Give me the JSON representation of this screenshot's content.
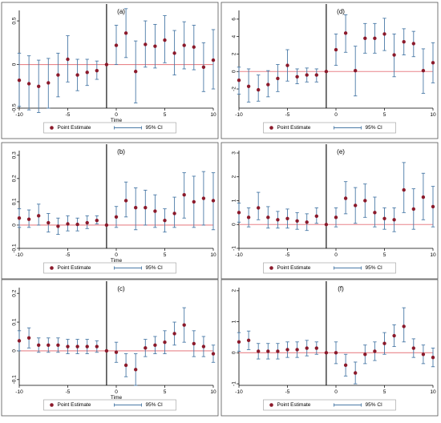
{
  "chart_data": [
    {
      "type": "scatter",
      "panel": "(a)",
      "title": "(a)",
      "xlabel": "Time",
      "ylabel": "",
      "xlim": [
        -10,
        10
      ],
      "ylim": [
        -0.5,
        0.62
      ],
      "yticks": [
        -0.5,
        0,
        0.5
      ],
      "ytick_labels": [
        "-0.5",
        "0",
        "0.5"
      ],
      "x": [
        -10,
        -9,
        -8,
        -7,
        -6,
        -5,
        -4,
        -3,
        -2,
        -1,
        0,
        1,
        2,
        3,
        4,
        5,
        6,
        7,
        8,
        9,
        10
      ],
      "point_estimate": [
        -0.18,
        -0.22,
        -0.25,
        -0.21,
        -0.12,
        0.06,
        -0.12,
        -0.09,
        -0.07,
        0,
        0.22,
        0.36,
        -0.08,
        0.23,
        0.21,
        0.28,
        0.13,
        0.22,
        0.2,
        -0.03,
        0.05
      ],
      "ci_lower": [
        -0.48,
        -0.52,
        -0.55,
        -0.5,
        -0.37,
        -0.2,
        -0.3,
        -0.24,
        -0.17,
        0,
        0.0,
        0.08,
        -0.44,
        -0.03,
        -0.04,
        0.02,
        -0.12,
        -0.05,
        -0.06,
        -0.31,
        -0.28
      ],
      "ci_upper": [
        0.13,
        0.1,
        0.05,
        0.07,
        0.13,
        0.33,
        0.06,
        0.06,
        0.04,
        0,
        0.45,
        0.64,
        0.27,
        0.5,
        0.46,
        0.56,
        0.39,
        0.49,
        0.45,
        0.25,
        0.4
      ],
      "legend": [
        "Point Estimate",
        "95% CI"
      ],
      "legend_placement": "bottom"
    },
    {
      "type": "scatter",
      "panel": "(d)",
      "title": "(d)",
      "xlabel": "",
      "ylabel": "",
      "xlim": [
        -10,
        10
      ],
      "ylim": [
        -4.2,
        7.0
      ],
      "yticks": [
        -2,
        0,
        2,
        4,
        6
      ],
      "ytick_labels": [
        "-2",
        "0",
        "2",
        "4",
        "6"
      ],
      "x": [
        -10,
        -9,
        -8,
        -7,
        -6,
        -5,
        -4,
        -3,
        -2,
        -1,
        0,
        1,
        2,
        3,
        4,
        5,
        6,
        7,
        8,
        9,
        10
      ],
      "point_estimate": [
        -1.0,
        -1.7,
        -2.1,
        -1.5,
        -0.8,
        0.7,
        -0.6,
        -0.4,
        -0.4,
        0,
        2.5,
        4.4,
        0.1,
        3.8,
        3.8,
        4.3,
        1.9,
        3.4,
        3.2,
        0.1,
        1.0
      ],
      "ci_lower": [
        -2.6,
        -3.5,
        -3.4,
        -2.9,
        -2.3,
        -1.1,
        -1.4,
        -1.2,
        -1.2,
        0,
        0.7,
        2.2,
        -2.8,
        2.1,
        2.1,
        2.4,
        -0.6,
        1.9,
        1.7,
        -2.5,
        -1.3
      ],
      "ci_upper": [
        0.5,
        0.3,
        -0.4,
        0.1,
        0.8,
        2.5,
        0.3,
        0.4,
        0.3,
        0,
        4.3,
        6.5,
        2.9,
        5.5,
        5.5,
        6.1,
        4.3,
        4.9,
        4.6,
        2.6,
        3.3
      ],
      "legend": [
        "Point Estimate",
        "95% CI"
      ],
      "legend_placement": "bottom"
    },
    {
      "type": "scatter",
      "panel": "(b)",
      "title": "(b)",
      "xlabel": "Time",
      "ylabel": "",
      "xlim": [
        -10,
        10
      ],
      "ylim": [
        -0.1,
        0.32
      ],
      "yticks": [
        -0.1,
        0,
        0.1,
        0.2,
        0.3
      ],
      "ytick_labels": [
        "-0.1",
        "0",
        "0.1",
        "0.2",
        "0.3"
      ],
      "x": [
        -10,
        -9,
        -8,
        -7,
        -6,
        -5,
        -4,
        -3,
        -2,
        -1,
        0,
        1,
        2,
        3,
        4,
        5,
        6,
        7,
        8,
        9,
        10
      ],
      "point_estimate": [
        0.03,
        0.025,
        0.04,
        0.01,
        -0.005,
        0.005,
        0.003,
        0.01,
        0.02,
        0,
        0.035,
        0.105,
        0.075,
        0.075,
        0.06,
        0.02,
        0.05,
        0.13,
        0.1,
        0.115,
        0.105
      ],
      "ci_lower": [
        -0.01,
        -0.01,
        0.0,
        -0.03,
        -0.04,
        -0.025,
        -0.025,
        -0.015,
        0.005,
        0,
        -0.01,
        0.035,
        -0.02,
        0.0,
        -0.01,
        -0.03,
        -0.01,
        0.03,
        -0.01,
        0.0,
        -0.02
      ],
      "ci_upper": [
        0.07,
        0.065,
        0.09,
        0.05,
        0.03,
        0.04,
        0.03,
        0.04,
        0.04,
        0,
        0.08,
        0.185,
        0.16,
        0.15,
        0.13,
        0.07,
        0.12,
        0.225,
        0.21,
        0.23,
        0.225
      ],
      "legend": [
        "Point Estimate",
        "95% CI"
      ],
      "legend_placement": "bottom"
    },
    {
      "type": "scatter",
      "panel": "(e)",
      "title": "(e)",
      "xlabel": "",
      "ylabel": "",
      "xlim": [
        -10,
        10
      ],
      "ylim": [
        -1.0,
        3.1
      ],
      "yticks": [
        -1,
        0,
        1,
        2,
        3
      ],
      "ytick_labels": [
        "-1",
        "0",
        "1",
        "2",
        "3"
      ],
      "x": [
        -10,
        -9,
        -8,
        -7,
        -6,
        -5,
        -4,
        -3,
        -2,
        -1,
        0,
        1,
        2,
        3,
        4,
        5,
        6,
        7,
        8,
        9,
        10
      ],
      "point_estimate": [
        0.5,
        0.3,
        0.7,
        0.3,
        0.2,
        0.25,
        0.15,
        0.1,
        0.35,
        0,
        0.3,
        1.1,
        0.8,
        1.0,
        0.5,
        0.25,
        0.2,
        1.45,
        0.65,
        1.15,
        0.75
      ],
      "ci_lower": [
        0.1,
        -0.1,
        0.2,
        -0.15,
        -0.15,
        -0.15,
        -0.2,
        -0.25,
        0.05,
        0,
        -0.1,
        0.45,
        0.05,
        0.3,
        -0.1,
        -0.2,
        -0.3,
        0.5,
        -0.2,
        0.2,
        -0.1
      ],
      "ci_upper": [
        0.9,
        0.7,
        1.35,
        0.75,
        0.55,
        0.65,
        0.5,
        0.45,
        0.7,
        0,
        0.7,
        1.8,
        1.55,
        1.7,
        1.15,
        0.7,
        0.7,
        2.6,
        1.5,
        2.15,
        1.6
      ],
      "legend": [
        "Point Estimate",
        "95% CI"
      ],
      "legend_placement": "bottom"
    },
    {
      "type": "scatter",
      "panel": "(c)",
      "title": "(c)",
      "xlabel": "Time",
      "ylabel": "",
      "xlim": [
        -10,
        10
      ],
      "ylim": [
        -0.12,
        0.22
      ],
      "yticks": [
        -0.1,
        0,
        0.1,
        0.2
      ],
      "ytick_labels": [
        "-0.1",
        "0",
        "0.1",
        "0.2"
      ],
      "x": [
        -10,
        -9,
        -8,
        -7,
        -6,
        -5,
        -4,
        -3,
        -2,
        -1,
        0,
        1,
        2,
        3,
        4,
        5,
        6,
        7,
        8,
        9,
        10
      ],
      "point_estimate": [
        0.035,
        0.045,
        0.02,
        0.02,
        0.02,
        0.015,
        0.015,
        0.015,
        0.015,
        0,
        -0.005,
        -0.05,
        -0.065,
        0.01,
        0.02,
        0.03,
        0.06,
        0.09,
        0.025,
        0.015,
        -0.01
      ],
      "ci_lower": [
        0.0,
        0.01,
        -0.005,
        -0.005,
        -0.005,
        -0.01,
        -0.01,
        -0.01,
        -0.005,
        0,
        -0.04,
        -0.09,
        -0.12,
        -0.02,
        -0.01,
        -0.01,
        0.02,
        0.03,
        -0.02,
        -0.02,
        -0.04
      ],
      "ci_upper": [
        0.07,
        0.08,
        0.045,
        0.045,
        0.045,
        0.04,
        0.04,
        0.04,
        0.035,
        0,
        0.03,
        -0.01,
        -0.01,
        0.04,
        0.05,
        0.07,
        0.1,
        0.15,
        0.07,
        0.05,
        0.02
      ],
      "legend": [
        "Point Estimate",
        "95% CI"
      ],
      "legend_placement": "bottom"
    },
    {
      "type": "scatter",
      "panel": "(f)",
      "title": "(f)",
      "xlabel": "",
      "ylabel": "",
      "xlim": [
        -10,
        10
      ],
      "ylim": [
        -1.05,
        2.1
      ],
      "yticks": [
        -1,
        0,
        1,
        2
      ],
      "ytick_labels": [
        "-1",
        "0",
        "1",
        "2"
      ],
      "x": [
        -10,
        -9,
        -8,
        -7,
        -6,
        -5,
        -4,
        -3,
        -2,
        -1,
        0,
        1,
        2,
        3,
        4,
        5,
        6,
        7,
        8,
        9,
        10
      ],
      "point_estimate": [
        0.35,
        0.4,
        0.05,
        0.05,
        0.05,
        0.1,
        0.1,
        0.15,
        0.15,
        0,
        0.0,
        -0.4,
        -0.65,
        -0.05,
        0.05,
        0.3,
        0.55,
        0.85,
        0.15,
        -0.05,
        -0.15
      ],
      "ci_lower": [
        0.05,
        0.1,
        -0.2,
        -0.2,
        -0.2,
        -0.15,
        -0.15,
        -0.1,
        -0.05,
        0,
        -0.35,
        -0.75,
        -1.0,
        -0.35,
        -0.25,
        -0.05,
        0.2,
        0.35,
        -0.15,
        -0.35,
        -0.45
      ],
      "ci_upper": [
        0.65,
        0.7,
        0.3,
        0.3,
        0.3,
        0.35,
        0.35,
        0.4,
        0.35,
        0,
        0.35,
        -0.05,
        -0.3,
        0.25,
        0.35,
        0.65,
        0.9,
        1.45,
        0.45,
        0.25,
        0.15
      ],
      "legend": [
        "Point Estimate",
        "95% CI"
      ],
      "legend_placement": "bottom"
    }
  ],
  "colors": {
    "point": "#8b1a2b",
    "ci": "#4a7aa7",
    "zero_line": "#e8848a",
    "event_line": "#000000",
    "frame": "#555555"
  },
  "x_tick_labels": [
    "-10",
    "-5",
    "0",
    "5",
    "10"
  ]
}
